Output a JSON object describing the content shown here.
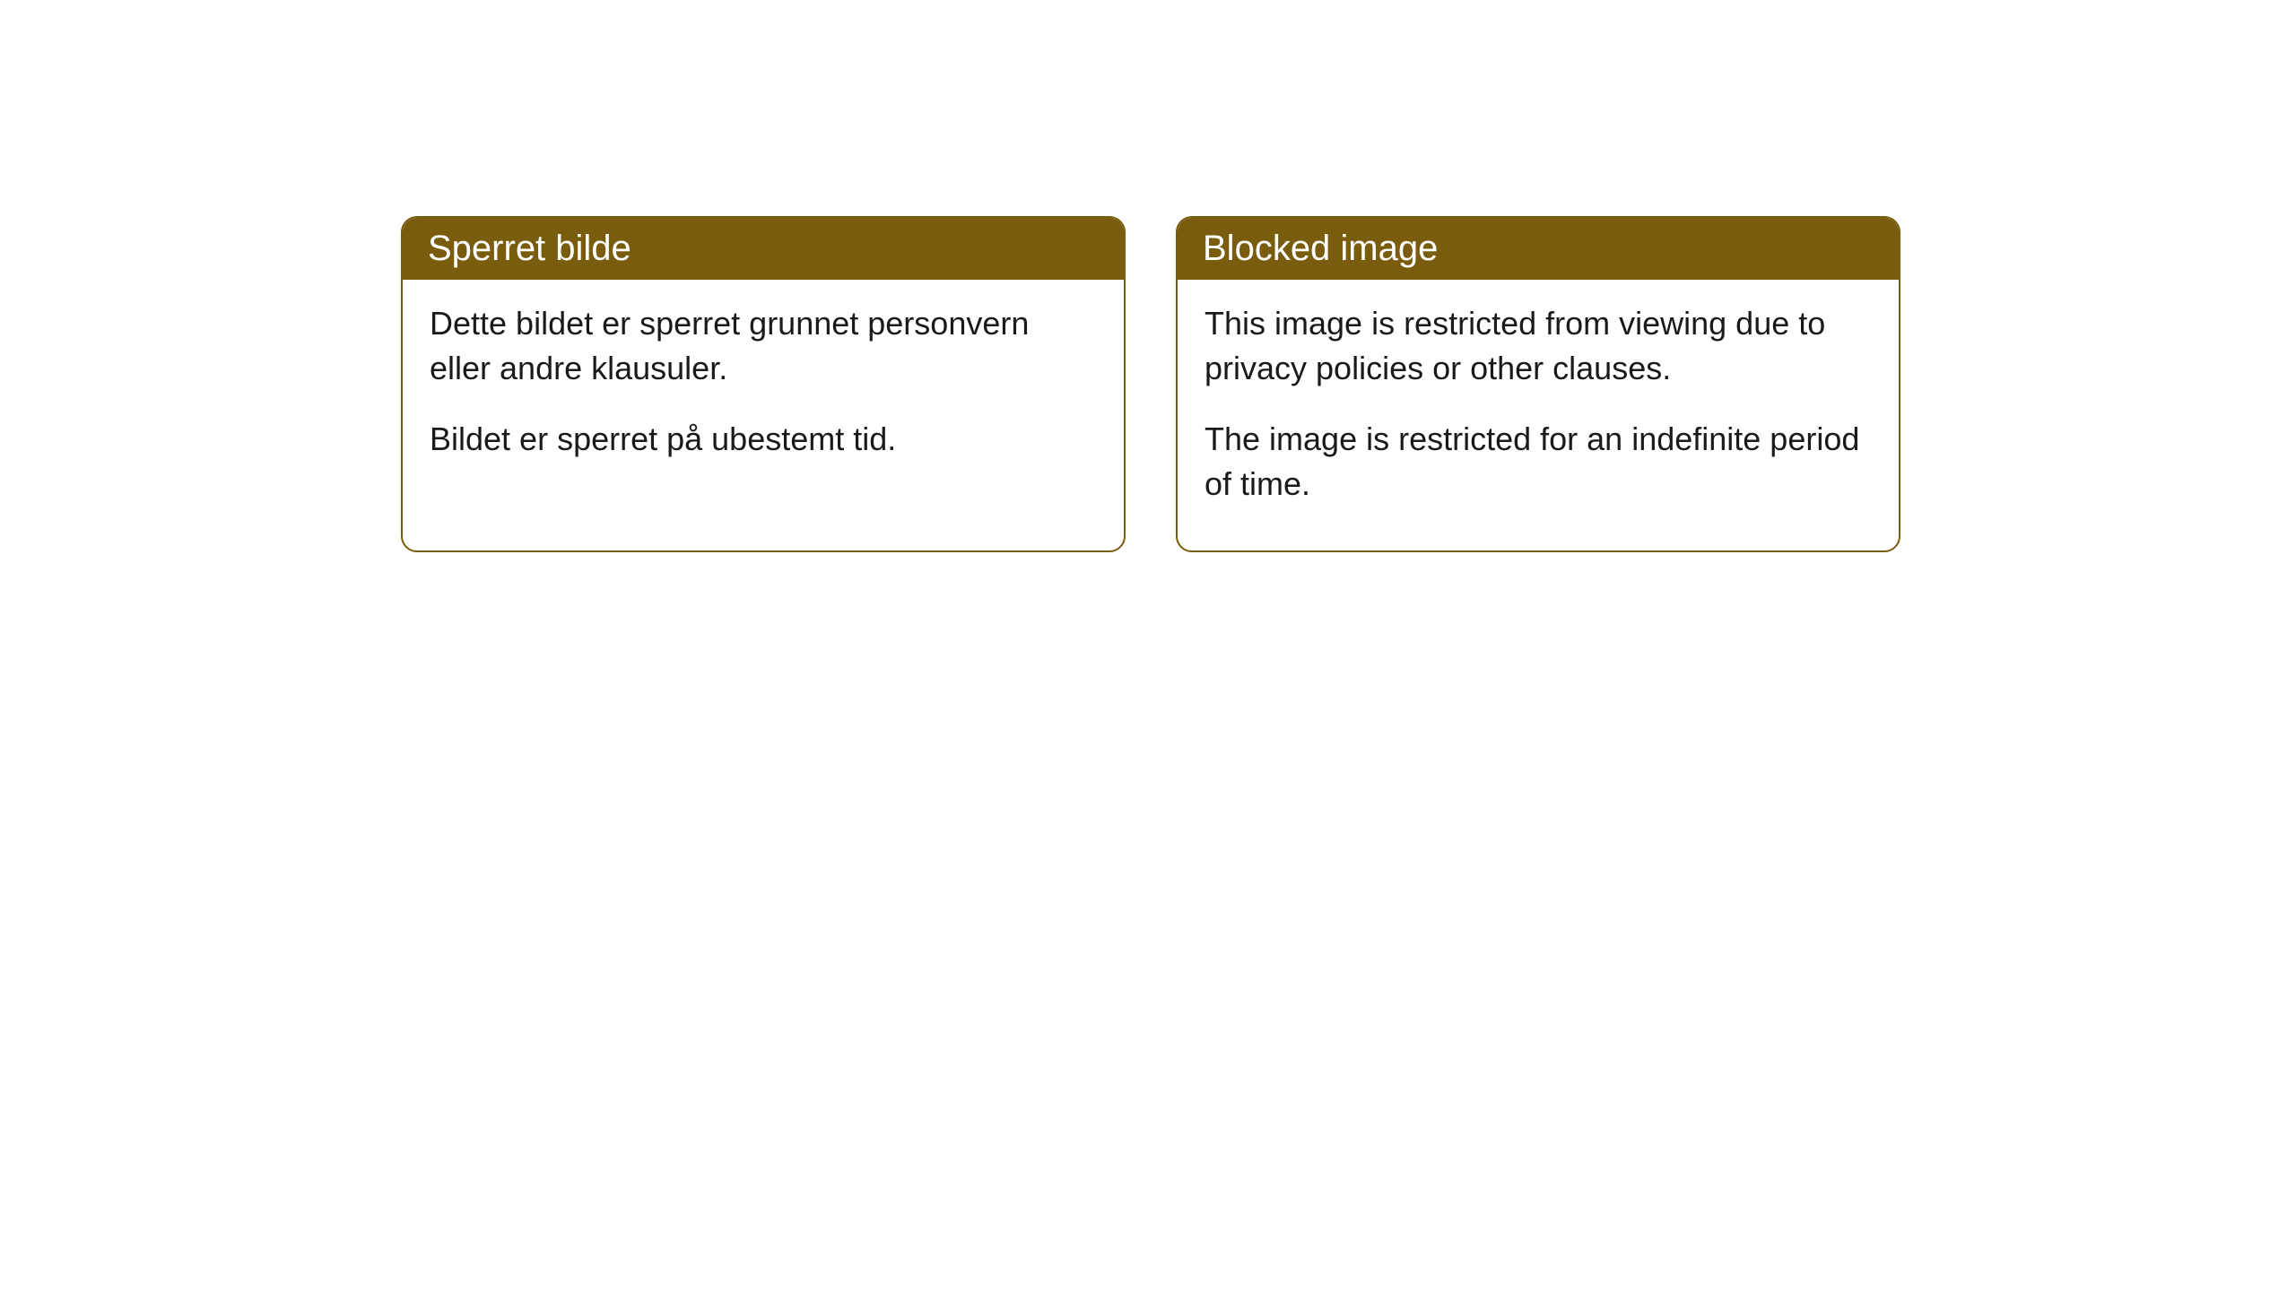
{
  "cards": [
    {
      "header": "Sperret bilde",
      "paragraph1": "Dette bildet er sperret grunnet personvern eller andre klausuler.",
      "paragraph2": "Bildet er sperret på ubestemt tid."
    },
    {
      "header": "Blocked image",
      "paragraph1": "This image is restricted from viewing due to privacy policies or other clauses.",
      "paragraph2": "The image is restricted for an indefinite period of time."
    }
  ],
  "style": {
    "header_bg": "#7a5c0f",
    "header_text_color": "#ffffff",
    "border_color": "#7a5c0f",
    "body_text_color": "#1a1a1a",
    "body_bg": "#ffffff",
    "border_radius": "18px",
    "header_font_size": "40px",
    "body_font_size": "36px"
  }
}
